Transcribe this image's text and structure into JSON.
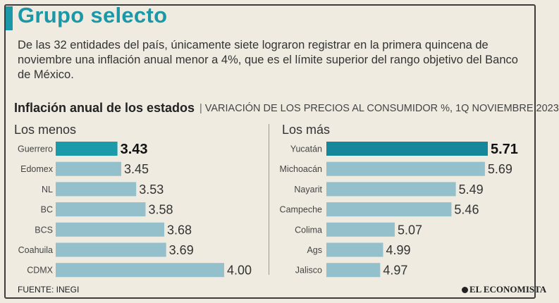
{
  "header": {
    "title": "Grupo selecto",
    "subtitle": "De las 32 entidades del país, únicamente siete lograron registrar en la primera quincena de noviembre una inflación anual menor a 4%, que es el límite superior del rango objetivo del Banco de México."
  },
  "chart_heading": {
    "title": "Inflación anual de los estados",
    "separator": "|",
    "subtitle": "VARIACIÓN DE LOS PRECIOS AL CONSUMIDOR %, 1Q NOVIEMBRE 2023"
  },
  "colors": {
    "highlight": "#1b9aaa",
    "highlight_right": "#14889a",
    "bar": "#93c0ca",
    "label": "#444444",
    "background": "#efebe1"
  },
  "chart_data": [
    {
      "type": "bar",
      "orientation": "horizontal",
      "panel": "Los menos",
      "categories": [
        "Guerrero",
        "Edomex",
        "NL",
        "BC",
        "BCS",
        "Coahuila",
        "CDMX"
      ],
      "values": [
        3.43,
        3.45,
        3.53,
        3.58,
        3.68,
        3.69,
        4.0
      ],
      "value_labels": [
        "3.43",
        "3.45",
        "3.53",
        "3.58",
        "3.68",
        "3.69",
        "4.00"
      ],
      "highlight_index": 0,
      "xlim": [
        3.1,
        4.0
      ]
    },
    {
      "type": "bar",
      "orientation": "horizontal",
      "panel": "Los más",
      "categories": [
        "Yucatán",
        "Michoacán",
        "Nayarit",
        "Campeche",
        "Colima",
        "Ags",
        "Jalisco"
      ],
      "values": [
        5.71,
        5.69,
        5.49,
        5.46,
        5.07,
        4.99,
        4.97
      ],
      "value_labels": [
        "5.71",
        "5.69",
        "5.49",
        "5.46",
        "5.07",
        "4.99",
        "4.97"
      ],
      "highlight_index": 0,
      "xlim": [
        4.6,
        5.71
      ]
    }
  ],
  "footer": {
    "source": "FUENTE: INEGI",
    "logo": "EL ECONOMISTA"
  }
}
